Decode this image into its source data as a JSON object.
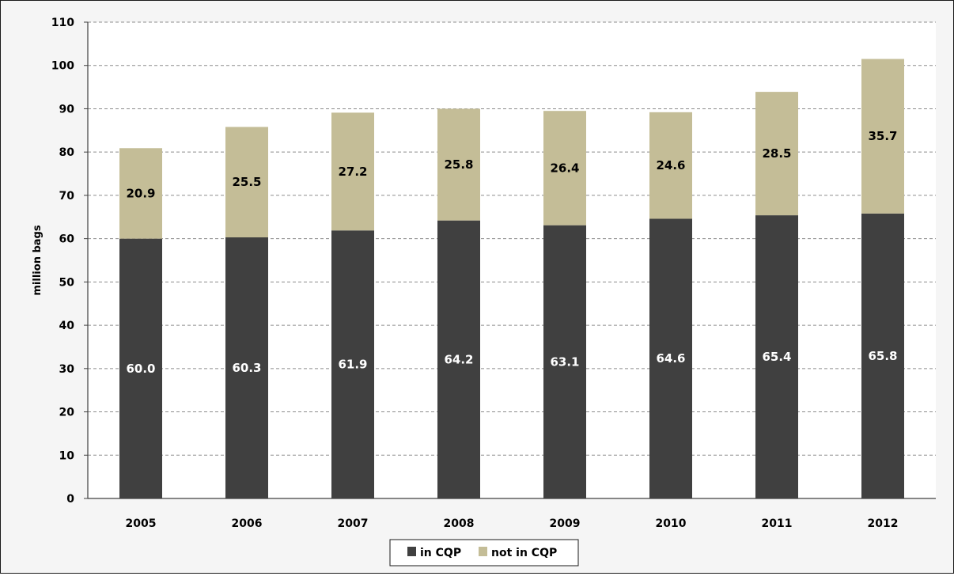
{
  "chart_data": {
    "type": "bar",
    "stacked": true,
    "categories": [
      "2005",
      "2006",
      "2007",
      "2008",
      "2009",
      "2010",
      "2011",
      "2012"
    ],
    "series": [
      {
        "name": "in CQP",
        "values": [
          60.0,
          60.3,
          61.9,
          64.2,
          63.1,
          64.6,
          65.4,
          65.8
        ]
      },
      {
        "name": "not in CQP",
        "values": [
          20.9,
          25.5,
          27.2,
          25.8,
          26.4,
          24.6,
          28.5,
          35.7
        ]
      }
    ],
    "ylabel": "million bags",
    "xlabel": "",
    "ylim": [
      0,
      110
    ],
    "ytick_step": 10,
    "yticks": [
      "0",
      "10",
      "20",
      "30",
      "40",
      "50",
      "60",
      "70",
      "80",
      "90",
      "100",
      "110"
    ],
    "grid": true,
    "legend": "bottom-center",
    "colors": {
      "in CQP": "#404040",
      "not in CQP": "#c4bd97",
      "in_label": "#ffffff",
      "out_label": "#000000",
      "grid": "#8c8c8c",
      "plot_background": "#ffffff"
    }
  }
}
